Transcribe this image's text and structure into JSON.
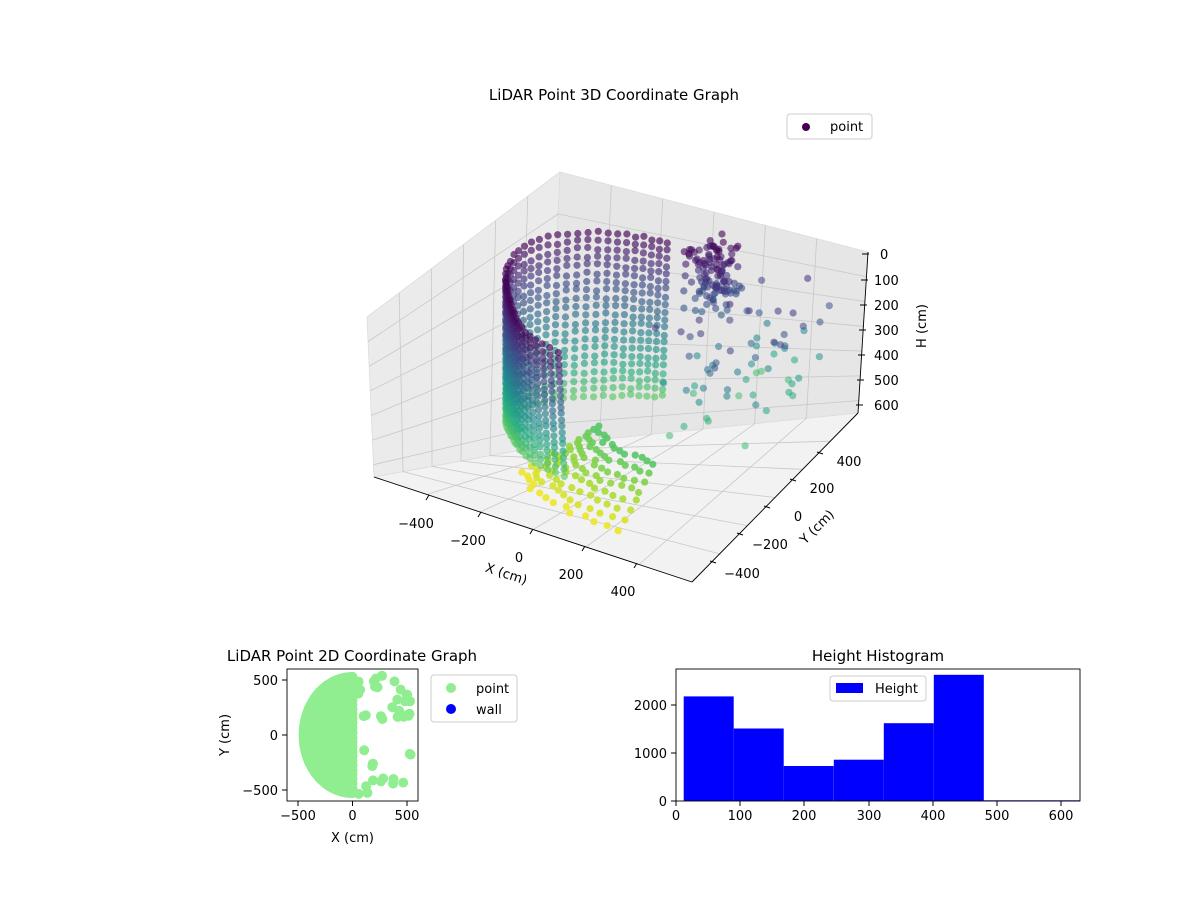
{
  "chart_data": [
    {
      "type": "scatter",
      "projection": "3d",
      "title": "LiDAR Point 3D Coordinate Graph",
      "xlabel": "X (cm)",
      "ylabel": "Y (cm)",
      "zlabel": "H (cm)",
      "xlim": [
        -600,
        600
      ],
      "ylim": [
        -600,
        600
      ],
      "zlim": [
        0,
        650
      ],
      "zaxis_inverted": true,
      "xticks": [
        "−400",
        "−200",
        "0",
        "200",
        "400"
      ],
      "yticks": [
        "−400",
        "−200",
        "0",
        "200",
        "400"
      ],
      "zticks": [
        "0",
        "100",
        "200",
        "300",
        "400",
        "500",
        "600"
      ],
      "colormap": "viridis",
      "legend": {
        "entries": [
          {
            "label": "point",
            "color": "#440154"
          }
        ],
        "placement": "upper-right"
      },
      "series": [
        {
          "name": "point",
          "description_values": "dense semicircular wall of points around the sensor, radius about 330-480 cm on the negative-X side, heights 0-480 cm plus sparse outliers down to about 640 cm",
          "shell": {
            "theta_deg": [
              95,
              275
            ],
            "radius": [
              330,
              480
            ],
            "height": [
              0,
              480
            ]
          },
          "sparse_ground": {
            "x": [
              -150,
              450
            ],
            "y": [
              -600,
              520
            ],
            "height": [
              480,
              640
            ]
          },
          "outliers": {
            "x": [
              120,
              560
            ],
            "y": [
              -40,
              560
            ],
            "height": [
              60,
              480
            ]
          }
        }
      ]
    },
    {
      "type": "scatter",
      "title": "LiDAR Point 2D Coordinate Graph",
      "xlabel": "X (cm)",
      "ylabel": "Y (cm)",
      "xlim": [
        -600,
        600
      ],
      "ylim": [
        -600,
        600
      ],
      "xticks": [
        "−500",
        "0",
        "500"
      ],
      "yticks": [
        "500",
        "0",
        "−500"
      ],
      "legend": {
        "entries": [
          {
            "label": "point",
            "color": "#90ee90"
          },
          {
            "label": "wall",
            "color": "#0000ff"
          }
        ],
        "placement": "outside-right"
      },
      "series": [
        {
          "name": "point",
          "color": "#90ee90",
          "shape": "half-disc",
          "center": [
            0,
            0
          ],
          "radius": 470,
          "x_range": [
            -480,
            560
          ],
          "y_range": [
            -600,
            560
          ]
        },
        {
          "name": "wall",
          "color": "#0000ff",
          "values": []
        }
      ]
    },
    {
      "type": "bar",
      "title": "Height Histogram",
      "xlabel": "",
      "ylabel": "",
      "xlim": [
        0,
        630
      ],
      "ylim": [
        0,
        2750
      ],
      "xticks": [
        "0",
        "100",
        "200",
        "300",
        "400",
        "500",
        "600"
      ],
      "yticks": [
        "0",
        "1000",
        "2000"
      ],
      "legend": {
        "entries": [
          {
            "label": "Height",
            "color": "#0000ff"
          }
        ],
        "placement": "top-center"
      },
      "color": "#0000ff",
      "bins": [
        {
          "start": 12,
          "end": 90,
          "value": 2180
        },
        {
          "start": 90,
          "end": 168,
          "value": 1510
        },
        {
          "start": 168,
          "end": 246,
          "value": 730
        },
        {
          "start": 246,
          "end": 324,
          "value": 860
        },
        {
          "start": 324,
          "end": 402,
          "value": 1620
        },
        {
          "start": 402,
          "end": 480,
          "value": 2630
        },
        {
          "start": 480,
          "end": 558,
          "value": 15
        },
        {
          "start": 558,
          "end": 636,
          "value": 15
        }
      ]
    }
  ]
}
